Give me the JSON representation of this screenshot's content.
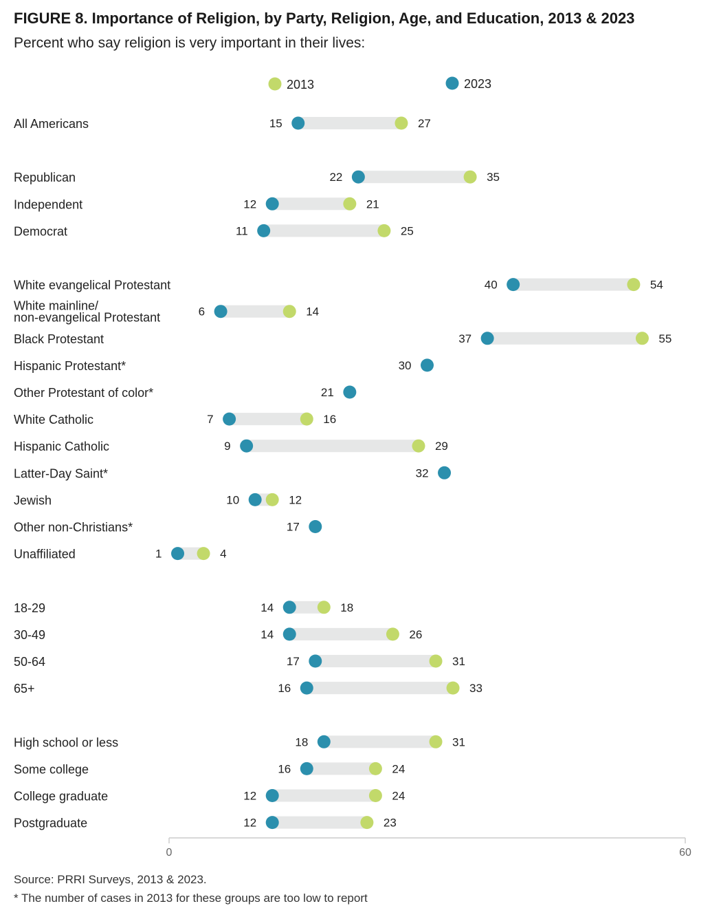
{
  "title": "FIGURE 8. Importance of Religion, by Party, Religion, Age, and Education, 2013 & 2023",
  "subtitle": "Percent who say religion is very important in their lives:",
  "source": "Source: PRRI Surveys, 2013 & 2023.",
  "note": "* The number of cases in 2013 for these groups are too low to report",
  "colors": {
    "y2013": "#c2d96a",
    "y2023": "#2b8fad",
    "bar": "#e6e7e7",
    "axis": "#cccccc"
  },
  "chart_data": {
    "type": "dumbbell",
    "xlim": [
      0,
      60
    ],
    "xticks": [
      "0",
      "60"
    ],
    "legend": [
      {
        "name": "2013",
        "key": "y2013"
      },
      {
        "name": "2023",
        "key": "y2023"
      }
    ],
    "groups": [
      {
        "rows": [
          {
            "label": "All Americans",
            "v2023": 15,
            "v2013": 27
          }
        ]
      },
      {
        "rows": [
          {
            "label": "Republican",
            "v2023": 22,
            "v2013": 35
          },
          {
            "label": "Independent",
            "v2023": 12,
            "v2013": 21
          },
          {
            "label": "Democrat",
            "v2023": 11,
            "v2013": 25
          }
        ]
      },
      {
        "rows": [
          {
            "label": "White evangelical Protestant",
            "v2023": 40,
            "v2013": 54
          },
          {
            "label": "White mainline/\nnon-evangelical Protestant",
            "v2023": 6,
            "v2013": 14
          },
          {
            "label": "Black Protestant",
            "v2023": 37,
            "v2013": 55
          },
          {
            "label": "Hispanic Protestant*",
            "v2023": 30,
            "v2013": null
          },
          {
            "label": "Other Protestant of color*",
            "v2023": 21,
            "v2013": null
          },
          {
            "label": "White Catholic",
            "v2023": 7,
            "v2013": 16
          },
          {
            "label": "Hispanic Catholic",
            "v2023": 9,
            "v2013": 29
          },
          {
            "label": "Latter-Day Saint*",
            "v2023": 32,
            "v2013": null
          },
          {
            "label": "Jewish",
            "v2023": 10,
            "v2013": 12
          },
          {
            "label": "Other non-Christians*",
            "v2023": 17,
            "v2013": null
          },
          {
            "label": "Unaffiliated",
            "v2023": 1,
            "v2013": 4
          }
        ]
      },
      {
        "rows": [
          {
            "label": "18-29",
            "v2023": 14,
            "v2013": 18
          },
          {
            "label": "30-49",
            "v2023": 14,
            "v2013": 26
          },
          {
            "label": "50-64",
            "v2023": 17,
            "v2013": 31
          },
          {
            "label": "65+",
            "v2023": 16,
            "v2013": 33
          }
        ]
      },
      {
        "rows": [
          {
            "label": "High school or less",
            "v2023": 18,
            "v2013": 31
          },
          {
            "label": "Some college",
            "v2023": 16,
            "v2013": 24
          },
          {
            "label": "College graduate",
            "v2023": 12,
            "v2013": 24
          },
          {
            "label": "Postgraduate",
            "v2023": 12,
            "v2013": 23
          }
        ]
      }
    ]
  }
}
